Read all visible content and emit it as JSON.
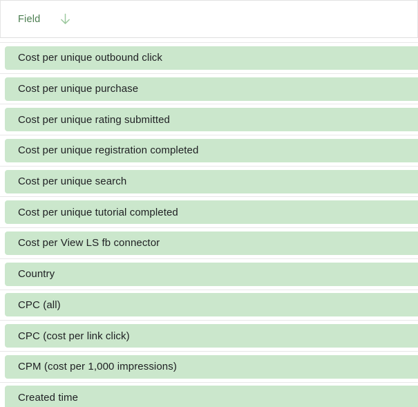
{
  "header": {
    "label": "Field",
    "sort_icon": "arrow-downward-icon",
    "sort_direction": "descending"
  },
  "colors": {
    "row_highlight": "#cbe7cc",
    "header_text": "#4b7e50",
    "arrow_icon": "#9cc89e",
    "row_text": "#202124",
    "divider": "#e7e7e7"
  },
  "list": {
    "items": [
      {
        "label": "Cost per unique outbound click"
      },
      {
        "label": "Cost per unique purchase"
      },
      {
        "label": "Cost per unique rating submitted"
      },
      {
        "label": "Cost per unique registration completed"
      },
      {
        "label": "Cost per unique search"
      },
      {
        "label": "Cost per unique tutorial completed"
      },
      {
        "label": "Cost per View LS fb connector"
      },
      {
        "label": "Country"
      },
      {
        "label": "CPC (all)"
      },
      {
        "label": "CPC (cost per link click)"
      },
      {
        "label": "CPM (cost per 1,000 impressions)"
      },
      {
        "label": "Created time"
      }
    ]
  }
}
